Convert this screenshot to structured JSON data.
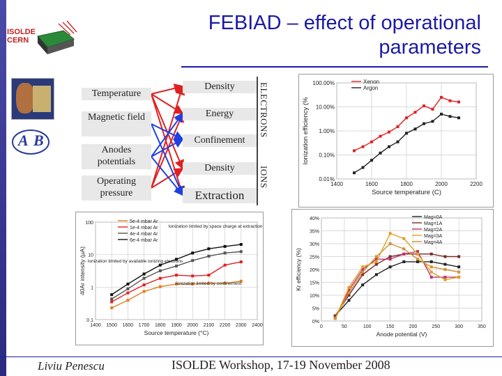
{
  "header": {
    "title_line1": "FEBIAD – effect of operational",
    "title_line2": "parameters"
  },
  "logos": {
    "isolde_line1": "ISOLDE",
    "isolde_line2": "CERN",
    "ab_left": "A",
    "ab_right": "B"
  },
  "parameters": [
    "Temperature",
    "Magnetic field",
    "Anodes potentials",
    "Operating pressure"
  ],
  "effects": [
    "Density",
    "Energy",
    "Confinement",
    "Density",
    "Extraction"
  ],
  "group_labels": {
    "electrons": "ELECTRONS",
    "ions": "IONS"
  },
  "footer": {
    "author": "Liviu Penescu",
    "event": "ISOLDE Workshop, 17-19 November 2008"
  },
  "colors": {
    "title": "#1a1aa6",
    "red_arrows": "#e02020",
    "blue_arrows": "#2040e0"
  },
  "chart_data": [
    {
      "type": "line",
      "ylabel": "Ionization efficiency (%",
      "xlabel": "Source temperature (C)",
      "x_ticks": [
        "1400",
        "1600",
        "1800",
        "2000",
        "2200"
      ],
      "y_ticks": [
        "100.00%",
        "10.00%",
        "1.00%",
        "0.10%",
        "0.01%"
      ],
      "xlim": [
        1400,
        2200
      ],
      "ylim_log10": [
        -2,
        2
      ],
      "y_scale": "log",
      "series": [
        {
          "name": "Xenon",
          "color": "#e02020",
          "marker": "square",
          "x": [
            1500,
            1550,
            1600,
            1650,
            1700,
            1750,
            1800,
            1850,
            1900,
            1950,
            2000,
            2050,
            2100
          ],
          "y": [
            0.15,
            0.22,
            0.35,
            0.6,
            0.9,
            1.5,
            3.5,
            6,
            11,
            8,
            25,
            18,
            16
          ]
        },
        {
          "name": "Argon",
          "color": "#222222",
          "marker": "diamond",
          "x": [
            1500,
            1550,
            1600,
            1650,
            1700,
            1750,
            1800,
            1850,
            1900,
            1950,
            2000,
            2050,
            2100
          ],
          "y": [
            0.018,
            0.03,
            0.06,
            0.12,
            0.22,
            0.35,
            0.8,
            1.2,
            2,
            2.5,
            5,
            4,
            3.5
          ]
        }
      ]
    },
    {
      "type": "line",
      "ylabel": "40Ar intensity (µA)",
      "xlabel": "Source temperature (°C)",
      "x_ticks": [
        "1400",
        "1500",
        "1600",
        "1700",
        "1800",
        "1900",
        "2000",
        "2100",
        "2200",
        "2300",
        "2400"
      ],
      "y_ticks": [
        "100",
        "10",
        "1",
        "0.1"
      ],
      "xlim": [
        1400,
        2400
      ],
      "ylim_log10": [
        -1,
        2.3
      ],
      "y_scale": "log",
      "annotations": [
        "Ionization limited by space charge at extraction",
        "Ionization limited by available ionizing electrons",
        "Ionization limited by confinement"
      ],
      "series": [
        {
          "name": "5e-4 mbar Ar",
          "color": "#e08020",
          "x": [
            1500,
            1600,
            1700,
            1800,
            1900,
            2000,
            2100,
            2200,
            2300
          ],
          "y": [
            0.25,
            0.45,
            0.9,
            1.3,
            1.6,
            1.6,
            1.7,
            1.7,
            2
          ]
        },
        {
          "name": "1e-4 mbar Ar",
          "color": "#e02020",
          "x": [
            1500,
            1600,
            1700,
            1800,
            1900,
            2000,
            2100,
            2200,
            2300
          ],
          "y": [
            0.4,
            0.8,
            1.5,
            2.5,
            3.2,
            3,
            3.2,
            7,
            9
          ]
        },
        {
          "name": "4e-4 mbar Ar",
          "color": "#555555",
          "x": [
            1500,
            1600,
            1700,
            1800,
            1900,
            2000,
            2100,
            2200,
            2300
          ],
          "y": [
            0.5,
            1.1,
            2.5,
            4.5,
            6.5,
            10,
            14,
            18,
            20
          ]
        },
        {
          "name": "6e-4 mbar Ar",
          "color": "#111111",
          "x": [
            1500,
            1600,
            1700,
            1800,
            1900,
            2000,
            2100,
            2200,
            2300
          ],
          "y": [
            0.7,
            1.6,
            3.5,
            7,
            11,
            18,
            25,
            30,
            35
          ]
        }
      ]
    },
    {
      "type": "line",
      "ylabel": "Kr efficiency (%)",
      "xlabel": "Anode potential (V)",
      "x_ticks": [
        "0",
        "50",
        "100",
        "150",
        "200",
        "250",
        "300",
        "350"
      ],
      "y_ticks": [
        "40%",
        "35%",
        "30%",
        "25%",
        "20%",
        "15%",
        "10%",
        "5%",
        "0%"
      ],
      "xlim": [
        0,
        350
      ],
      "ylim": [
        0,
        40
      ],
      "series": [
        {
          "name": "Mag=0A",
          "color": "#222222",
          "x": [
            30,
            60,
            90,
            120,
            150,
            180,
            210,
            240,
            270,
            300
          ],
          "y": [
            2,
            8,
            14,
            18,
            21,
            23,
            23,
            23,
            22,
            21
          ]
        },
        {
          "name": "Mag=1A",
          "color": "#7a2a2a",
          "x": [
            30,
            60,
            90,
            120,
            150,
            180,
            210,
            240,
            270,
            300
          ],
          "y": [
            2,
            10,
            18,
            22,
            25,
            26,
            26,
            26,
            25,
            25
          ]
        },
        {
          "name": "Mag=2A",
          "color": "#c03070",
          "x": [
            30,
            60,
            90,
            120,
            150,
            180,
            210,
            240,
            270,
            300
          ],
          "y": [
            1,
            12,
            20,
            24,
            24,
            26,
            27,
            17,
            17,
            17
          ]
        },
        {
          "name": "Mag=3A",
          "color": "#e0a020",
          "x": [
            30,
            60,
            90,
            120,
            150,
            180,
            210,
            240,
            270,
            300
          ],
          "y": [
            1,
            13,
            21,
            23,
            34,
            32,
            26,
            19,
            16,
            17
          ]
        },
        {
          "name": "Mag=4A",
          "color": "#d09030",
          "x": [
            30,
            60,
            90,
            120,
            150,
            180,
            210,
            240,
            270,
            300
          ],
          "y": [
            1,
            11,
            19,
            25,
            30,
            28,
            24,
            21,
            20,
            19
          ]
        }
      ]
    }
  ]
}
